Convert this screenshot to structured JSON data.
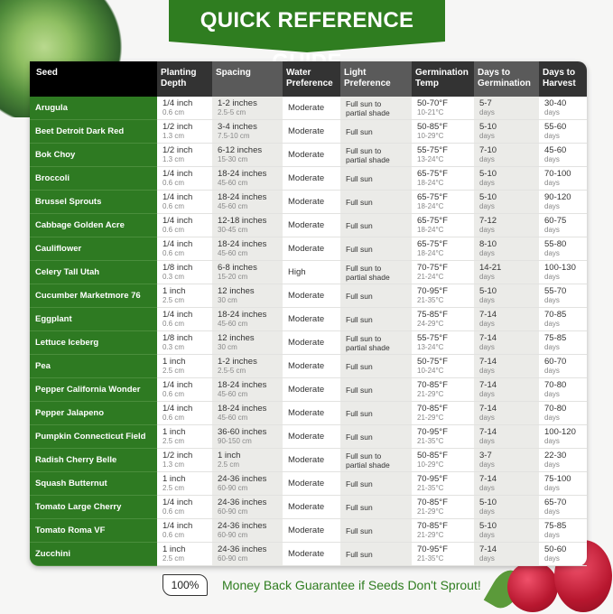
{
  "title": "QUICK REFERENCE GUIDE",
  "headers": {
    "seed": "Seed",
    "planting_depth": [
      "Planting",
      "Depth"
    ],
    "spacing": "Spacing",
    "water": [
      "Water",
      "Preference"
    ],
    "light": [
      "Light",
      "Preference"
    ],
    "germ_temp": [
      "Germination",
      "Temp"
    ],
    "days_germ": [
      "Days to",
      "Germination"
    ],
    "days_harvest": [
      "Days to",
      "Harvest"
    ]
  },
  "colors": {
    "brand_green": "#2f7d20",
    "header_dark": "#333333",
    "header_light": "#5a5a5a"
  },
  "rows": [
    {
      "seed": "Arugula",
      "depth": "1/4 inch",
      "depth_cm": "0.6 cm",
      "spacing": "1-2 inches",
      "spacing_cm": "2.5-5 cm",
      "water": "Moderate",
      "light1": "Full sun to",
      "light2": "partial shade",
      "temp_f": "50-70°F",
      "temp_c": "10-21°C",
      "germ": "5-7",
      "harvest": "30-40"
    },
    {
      "seed": "Beet Detroit Dark Red",
      "depth": "1/2 inch",
      "depth_cm": "1.3 cm",
      "spacing": "3-4 inches",
      "spacing_cm": "7.5-10 cm",
      "water": "Moderate",
      "light1": "Full sun",
      "light2": "",
      "temp_f": "50-85°F",
      "temp_c": "10-29°C",
      "germ": "5-10",
      "harvest": "55-60"
    },
    {
      "seed": "Bok Choy",
      "depth": "1/2 inch",
      "depth_cm": "1.3 cm",
      "spacing": "6-12 inches",
      "spacing_cm": "15-30 cm",
      "water": "Moderate",
      "light1": "Full sun to",
      "light2": "partial shade",
      "temp_f": "55-75°F",
      "temp_c": "13-24°C",
      "germ": "7-10",
      "harvest": "45-60"
    },
    {
      "seed": "Broccoli",
      "depth": "1/4 inch",
      "depth_cm": "0.6 cm",
      "spacing": "18-24 inches",
      "spacing_cm": "45-60 cm",
      "water": "Moderate",
      "light1": "Full sun",
      "light2": "",
      "temp_f": "65-75°F",
      "temp_c": "18-24°C",
      "germ": "5-10",
      "harvest": "70-100"
    },
    {
      "seed": "Brussel Sprouts",
      "depth": "1/4 inch",
      "depth_cm": "0.6 cm",
      "spacing": "18-24 inches",
      "spacing_cm": "45-60 cm",
      "water": "Moderate",
      "light1": "Full sun",
      "light2": "",
      "temp_f": "65-75°F",
      "temp_c": "18-24°C",
      "germ": "5-10",
      "harvest": "90-120"
    },
    {
      "seed": "Cabbage Golden Acre",
      "depth": "1/4 inch",
      "depth_cm": "0.6 cm",
      "spacing": "12-18 inches",
      "spacing_cm": "30-45 cm",
      "water": "Moderate",
      "light1": "Full sun",
      "light2": "",
      "temp_f": "65-75°F",
      "temp_c": "18-24°C",
      "germ": "7-12",
      "harvest": "60-75"
    },
    {
      "seed": "Cauliflower",
      "depth": "1/4 inch",
      "depth_cm": "0.6 cm",
      "spacing": "18-24 inches",
      "spacing_cm": "45-60 cm",
      "water": "Moderate",
      "light1": "Full sun",
      "light2": "",
      "temp_f": "65-75°F",
      "temp_c": "18-24°C",
      "germ": "8-10",
      "harvest": "55-80"
    },
    {
      "seed": "Celery Tall Utah",
      "depth": "1/8 inch",
      "depth_cm": "0.3 cm",
      "spacing": "6-8 inches",
      "spacing_cm": "15-20 cm",
      "water": "High",
      "light1": "Full sun to",
      "light2": "partial shade",
      "temp_f": "70-75°F",
      "temp_c": "21-24°C",
      "germ": "14-21",
      "harvest": "100-130"
    },
    {
      "seed": "Cucumber Marketmore 76",
      "depth": "1 inch",
      "depth_cm": "2.5 cm",
      "spacing": "12 inches",
      "spacing_cm": "30 cm",
      "water": "Moderate",
      "light1": "Full sun",
      "light2": "",
      "temp_f": "70-95°F",
      "temp_c": "21-35°C",
      "germ": "5-10",
      "harvest": "55-70"
    },
    {
      "seed": "Eggplant",
      "depth": "1/4 inch",
      "depth_cm": "0.6 cm",
      "spacing": "18-24 inches",
      "spacing_cm": "45-60 cm",
      "water": "Moderate",
      "light1": "Full sun",
      "light2": "",
      "temp_f": "75-85°F",
      "temp_c": "24-29°C",
      "germ": "7-14",
      "harvest": "70-85"
    },
    {
      "seed": "Lettuce Iceberg",
      "depth": "1/8 inch",
      "depth_cm": "0.3 cm",
      "spacing": "12 inches",
      "spacing_cm": "30 cm",
      "water": "Moderate",
      "light1": "Full sun to",
      "light2": "partial shade",
      "temp_f": "55-75°F",
      "temp_c": "13-24°C",
      "germ": "7-14",
      "harvest": "75-85"
    },
    {
      "seed": "Pea",
      "depth": "1 inch",
      "depth_cm": "2.5 cm",
      "spacing": "1-2 inches",
      "spacing_cm": "2.5-5 cm",
      "water": "Moderate",
      "light1": "Full sun",
      "light2": "",
      "temp_f": "50-75°F",
      "temp_c": "10-24°C",
      "germ": "7-14",
      "harvest": "60-70"
    },
    {
      "seed": "Pepper California Wonder",
      "depth": "1/4 inch",
      "depth_cm": "0.6 cm",
      "spacing": "18-24 inches",
      "spacing_cm": "45-60 cm",
      "water": "Moderate",
      "light1": "Full sun",
      "light2": "",
      "temp_f": "70-85°F",
      "temp_c": "21-29°C",
      "germ": "7-14",
      "harvest": "70-80"
    },
    {
      "seed": "Pepper Jalapeno",
      "depth": "1/4 inch",
      "depth_cm": "0.6 cm",
      "spacing": "18-24 inches",
      "spacing_cm": "45-60 cm",
      "water": "Moderate",
      "light1": "Full sun",
      "light2": "",
      "temp_f": "70-85°F",
      "temp_c": "21-29°C",
      "germ": "7-14",
      "harvest": "70-80"
    },
    {
      "seed": "Pumpkin Connecticut Field",
      "depth": "1 inch",
      "depth_cm": "2.5 cm",
      "spacing": "36-60 inches",
      "spacing_cm": "90-150 cm",
      "water": "Moderate",
      "light1": "Full sun",
      "light2": "",
      "temp_f": "70-95°F",
      "temp_c": "21-35°C",
      "germ": "7-14",
      "harvest": "100-120"
    },
    {
      "seed": "Radish Cherry Belle",
      "depth": "1/2 inch",
      "depth_cm": "1.3 cm",
      "spacing": "1 inch",
      "spacing_cm": "2.5 cm",
      "water": "Moderate",
      "light1": "Full sun to",
      "light2": "partial shade",
      "temp_f": "50-85°F",
      "temp_c": "10-29°C",
      "germ": "3-7",
      "harvest": "22-30"
    },
    {
      "seed": "Squash Butternut",
      "depth": "1 inch",
      "depth_cm": "2.5 cm",
      "spacing": "24-36 inches",
      "spacing_cm": "60-90 cm",
      "water": "Moderate",
      "light1": "Full sun",
      "light2": "",
      "temp_f": "70-95°F",
      "temp_c": "21-35°C",
      "germ": "7-14",
      "harvest": "75-100"
    },
    {
      "seed": "Tomato Large Cherry",
      "depth": "1/4 inch",
      "depth_cm": "0.6 cm",
      "spacing": "24-36 inches",
      "spacing_cm": "60-90 cm",
      "water": "Moderate",
      "light1": "Full sun",
      "light2": "",
      "temp_f": "70-85°F",
      "temp_c": "21-29°C",
      "germ": "5-10",
      "harvest": "65-70"
    },
    {
      "seed": "Tomato Roma VF",
      "depth": "1/4 inch",
      "depth_cm": "0.6 cm",
      "spacing": "24-36 inches",
      "spacing_cm": "60-90 cm",
      "water": "Moderate",
      "light1": "Full sun",
      "light2": "",
      "temp_f": "70-85°F",
      "temp_c": "21-29°C",
      "germ": "5-10",
      "harvest": "75-85"
    },
    {
      "seed": "Zucchini",
      "depth": "1 inch",
      "depth_cm": "2.5 cm",
      "spacing": "24-36 inches",
      "spacing_cm": "60-90 cm",
      "water": "Moderate",
      "light1": "Full sun",
      "light2": "",
      "temp_f": "70-95°F",
      "temp_c": "21-35°C",
      "germ": "7-14",
      "harvest": "50-60"
    }
  ],
  "days_unit": "days",
  "footer": {
    "badge": "100%",
    "text": "Money Back Guarantee if Seeds Don't Sprout!"
  }
}
